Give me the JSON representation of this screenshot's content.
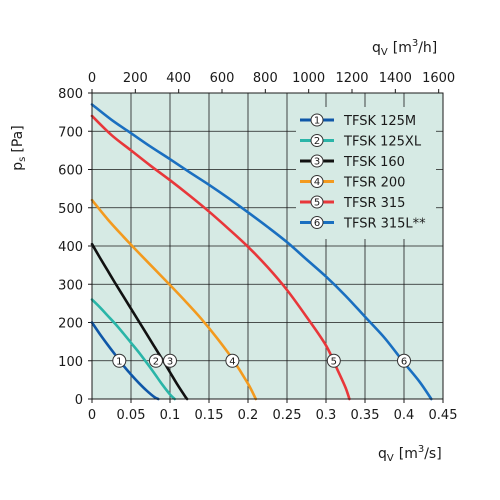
{
  "chart_data": {
    "type": "line",
    "colors": {
      "plot_background": "#d6eae4",
      "grid": "#1a1a1a"
    },
    "x_axis": {
      "label_main": "q",
      "label_sub": "V",
      "label_unit_prefix": "[m",
      "label_unit_sup": "3",
      "label_unit_suffix": "/s]",
      "range": [
        0,
        0.45
      ],
      "ticks": [
        0,
        0.05,
        0.1,
        0.15,
        0.2,
        0.25,
        0.3,
        0.35,
        0.4,
        0.45
      ],
      "tick_labels": [
        "0",
        "0.05",
        "0.1",
        "0.15",
        "0.2",
        "0.25",
        "0.3",
        "0.35",
        "0.4",
        "0.45"
      ]
    },
    "x2_axis": {
      "label_main": "q",
      "label_sub": "V",
      "label_unit_prefix": "[m",
      "label_unit_sup": "3",
      "label_unit_suffix": "/h]",
      "range": [
        0,
        1620
      ],
      "ticks": [
        0,
        200,
        400,
        600,
        800,
        1000,
        1200,
        1400,
        1600
      ],
      "tick_labels": [
        "0",
        "200",
        "400",
        "600",
        "800",
        "1000",
        "1200",
        "1400",
        "1600"
      ]
    },
    "y_axis": {
      "label_main": "p",
      "label_sub": "s",
      "label_unit": "[Pa]",
      "range": [
        0,
        800
      ],
      "ticks": [
        0,
        100,
        200,
        300,
        400,
        500,
        600,
        700,
        800
      ],
      "tick_labels": [
        "0",
        "100",
        "200",
        "300",
        "400",
        "500",
        "600",
        "700",
        "800"
      ]
    },
    "grid": true,
    "legend_position": "top-right",
    "series": [
      {
        "name": "TFSK 125M",
        "marker_label": "1",
        "color": "#0f57a8",
        "marker_at": [
          0.035,
          100
        ],
        "points": [
          [
            0,
            200
          ],
          [
            0.01,
            170
          ],
          [
            0.02,
            142
          ],
          [
            0.03,
            115
          ],
          [
            0.04,
            88
          ],
          [
            0.05,
            64
          ],
          [
            0.06,
            42
          ],
          [
            0.07,
            22
          ],
          [
            0.08,
            5
          ],
          [
            0.085,
            0
          ]
        ]
      },
      {
        "name": "TFSK 125XL",
        "marker_label": "2",
        "color": "#2ab5a8",
        "marker_at": [
          0.082,
          100
        ],
        "points": [
          [
            0,
            260
          ],
          [
            0.01,
            240
          ],
          [
            0.02,
            218
          ],
          [
            0.03,
            196
          ],
          [
            0.04,
            172
          ],
          [
            0.05,
            147
          ],
          [
            0.06,
            122
          ],
          [
            0.07,
            95
          ],
          [
            0.08,
            67
          ],
          [
            0.09,
            38
          ],
          [
            0.1,
            12
          ],
          [
            0.106,
            0
          ]
        ]
      },
      {
        "name": "TFSK 160",
        "marker_label": "3",
        "color": "#111111",
        "marker_at": [
          0.1,
          100
        ],
        "points": [
          [
            0,
            405
          ],
          [
            0.01,
            370
          ],
          [
            0.02,
            336
          ],
          [
            0.03,
            302
          ],
          [
            0.04,
            269
          ],
          [
            0.05,
            236
          ],
          [
            0.06,
            203
          ],
          [
            0.07,
            170
          ],
          [
            0.08,
            137
          ],
          [
            0.09,
            104
          ],
          [
            0.1,
            70
          ],
          [
            0.11,
            36
          ],
          [
            0.12,
            5
          ],
          [
            0.122,
            0
          ]
        ]
      },
      {
        "name": "TFSR 200",
        "marker_label": "4",
        "color": "#f39a1e",
        "marker_at": [
          0.18,
          100
        ],
        "points": [
          [
            0,
            520
          ],
          [
            0.02,
            470
          ],
          [
            0.04,
            425
          ],
          [
            0.06,
            382
          ],
          [
            0.08,
            340
          ],
          [
            0.1,
            298
          ],
          [
            0.12,
            255
          ],
          [
            0.14,
            210
          ],
          [
            0.16,
            160
          ],
          [
            0.18,
            105
          ],
          [
            0.2,
            40
          ],
          [
            0.21,
            0
          ]
        ]
      },
      {
        "name": "TFSR 315",
        "marker_label": "5",
        "color": "#e8373a",
        "marker_at": [
          0.31,
          100
        ],
        "points": [
          [
            0,
            740
          ],
          [
            0.025,
            690
          ],
          [
            0.05,
            650
          ],
          [
            0.075,
            610
          ],
          [
            0.1,
            572
          ],
          [
            0.125,
            532
          ],
          [
            0.15,
            490
          ],
          [
            0.175,
            445
          ],
          [
            0.2,
            398
          ],
          [
            0.225,
            345
          ],
          [
            0.25,
            285
          ],
          [
            0.275,
            215
          ],
          [
            0.3,
            140
          ],
          [
            0.315,
            75
          ],
          [
            0.325,
            30
          ],
          [
            0.33,
            0
          ]
        ]
      },
      {
        "name": "TFSR 315L**",
        "marker_label": "6",
        "color": "#1a6fc0",
        "marker_at": [
          0.4,
          100
        ],
        "points": [
          [
            0,
            770
          ],
          [
            0.025,
            730
          ],
          [
            0.05,
            695
          ],
          [
            0.075,
            660
          ],
          [
            0.1,
            627
          ],
          [
            0.125,
            593
          ],
          [
            0.15,
            560
          ],
          [
            0.175,
            525
          ],
          [
            0.2,
            488
          ],
          [
            0.225,
            450
          ],
          [
            0.25,
            410
          ],
          [
            0.275,
            365
          ],
          [
            0.3,
            320
          ],
          [
            0.325,
            270
          ],
          [
            0.35,
            215
          ],
          [
            0.375,
            160
          ],
          [
            0.4,
            95
          ],
          [
            0.42,
            45
          ],
          [
            0.435,
            0
          ]
        ]
      }
    ]
  }
}
